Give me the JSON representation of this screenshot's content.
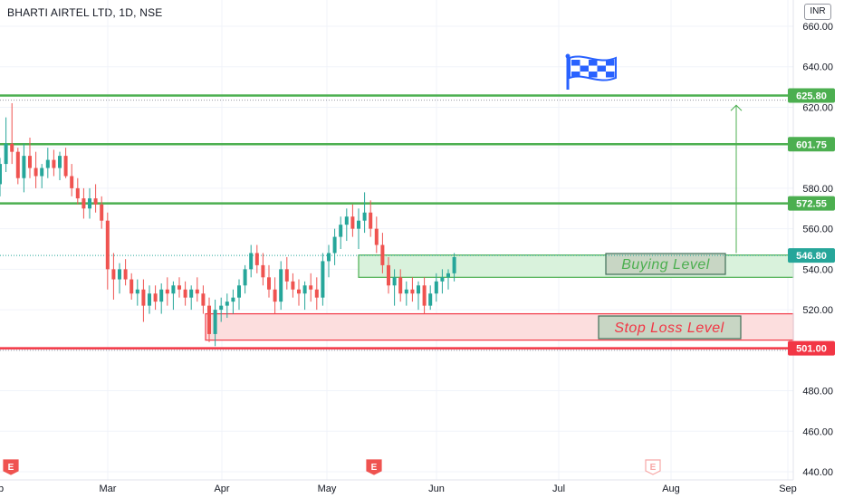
{
  "title": "BHARTI AIRTEL LTD, 1D, NSE",
  "currency": "INR",
  "colors": {
    "up": "#26a69a",
    "down": "#ef5350",
    "resistance": "#4caf50",
    "support": "#f23645",
    "buy_fill": "#d9f2dc",
    "stop_fill": "#fcdede",
    "label_fill": "#c8d6c4",
    "flag": "#2962ff"
  },
  "chart_data": {
    "type": "candlestick",
    "x_ticks": [
      "eb",
      "Mar",
      "Apr",
      "May",
      "Jun",
      "Jul",
      "Aug",
      "Sep"
    ],
    "y_ticks": [
      "660.00",
      "640.00",
      "620.00",
      "600.00",
      "580.00",
      "560.00",
      "540.00",
      "520.00",
      "500.00",
      "480.00",
      "460.00",
      "440.00"
    ],
    "ylim": [
      438,
      664
    ],
    "levels": [
      {
        "value": 625.8,
        "label": "625.80",
        "role": "resistance"
      },
      {
        "value": 601.75,
        "label": "601.75",
        "role": "resistance"
      },
      {
        "value": 572.55,
        "label": "572.55",
        "role": "resistance"
      },
      {
        "value": 546.8,
        "label": "546.80",
        "role": "last"
      },
      {
        "value": 501.0,
        "label": "501.00",
        "role": "support"
      }
    ],
    "zones": [
      {
        "name": "Buying Level",
        "top": 547,
        "bottom": 536
      },
      {
        "name": "Stop Loss Level",
        "top": 518,
        "bottom": 505
      }
    ],
    "target_arrow": {
      "from": 548,
      "to": 621
    },
    "earnings_markers": [
      "E",
      "E",
      "E"
    ],
    "candles": [
      [
        582,
        595,
        576,
        592
      ],
      [
        592,
        615,
        588,
        602
      ],
      [
        602,
        622,
        592,
        598
      ],
      [
        598,
        600,
        582,
        585
      ],
      [
        585,
        602,
        578,
        596
      ],
      [
        596,
        605,
        585,
        590
      ],
      [
        590,
        598,
        580,
        586
      ],
      [
        586,
        592,
        580,
        590
      ],
      [
        590,
        600,
        585,
        594
      ],
      [
        594,
        599,
        586,
        590
      ],
      [
        590,
        598,
        584,
        596
      ],
      [
        596,
        600,
        585,
        586
      ],
      [
        586,
        592,
        576,
        580
      ],
      [
        580,
        585,
        572,
        575
      ],
      [
        575,
        580,
        565,
        570
      ],
      [
        570,
        580,
        565,
        575
      ],
      [
        575,
        582,
        568,
        572
      ],
      [
        572,
        576,
        560,
        564
      ],
      [
        564,
        568,
        530,
        540
      ],
      [
        540,
        548,
        525,
        535
      ],
      [
        535,
        543,
        528,
        540
      ],
      [
        540,
        545,
        532,
        535
      ],
      [
        535,
        538,
        525,
        528
      ],
      [
        528,
        535,
        522,
        530
      ],
      [
        530,
        535,
        514,
        522
      ],
      [
        522,
        532,
        518,
        528
      ],
      [
        528,
        532,
        520,
        524
      ],
      [
        524,
        533,
        518,
        530
      ],
      [
        530,
        536,
        522,
        528
      ],
      [
        528,
        534,
        520,
        532
      ],
      [
        532,
        536,
        526,
        530
      ],
      [
        530,
        534,
        522,
        526
      ],
      [
        526,
        532,
        520,
        530
      ],
      [
        530,
        536,
        524,
        528
      ],
      [
        528,
        532,
        518,
        522
      ],
      [
        522,
        526,
        504,
        508
      ],
      [
        508,
        525,
        502,
        520
      ],
      [
        520,
        526,
        514,
        522
      ],
      [
        522,
        528,
        516,
        524
      ],
      [
        524,
        530,
        518,
        526
      ],
      [
        526,
        535,
        520,
        532
      ],
      [
        532,
        542,
        528,
        540
      ],
      [
        540,
        552,
        536,
        548
      ],
      [
        548,
        552,
        538,
        542
      ],
      [
        542,
        548,
        532,
        536
      ],
      [
        536,
        542,
        526,
        530
      ],
      [
        530,
        536,
        518,
        524
      ],
      [
        524,
        544,
        520,
        540
      ],
      [
        540,
        546,
        530,
        534
      ],
      [
        534,
        538,
        526,
        530
      ],
      [
        530,
        535,
        522,
        528
      ],
      [
        528,
        534,
        520,
        532
      ],
      [
        532,
        538,
        524,
        530
      ],
      [
        530,
        536,
        520,
        526
      ],
      [
        526,
        548,
        522,
        544
      ],
      [
        544,
        552,
        536,
        548
      ],
      [
        548,
        560,
        542,
        556
      ],
      [
        556,
        566,
        550,
        562
      ],
      [
        562,
        570,
        554,
        566
      ],
      [
        566,
        572,
        556,
        560
      ],
      [
        560,
        570,
        550,
        564
      ],
      [
        564,
        578,
        558,
        568
      ],
      [
        568,
        574,
        556,
        560
      ],
      [
        560,
        566,
        548,
        552
      ],
      [
        552,
        558,
        538,
        542
      ],
      [
        542,
        546,
        528,
        532
      ],
      [
        532,
        540,
        522,
        536
      ],
      [
        536,
        540,
        524,
        528
      ],
      [
        528,
        534,
        522,
        530
      ],
      [
        530,
        536,
        524,
        528
      ],
      [
        528,
        534,
        520,
        532
      ],
      [
        532,
        536,
        518,
        522
      ],
      [
        522,
        532,
        520,
        528
      ],
      [
        528,
        538,
        524,
        534
      ],
      [
        534,
        540,
        528,
        536
      ],
      [
        536,
        540,
        530,
        538
      ],
      [
        538,
        548,
        534,
        546
      ]
    ]
  }
}
